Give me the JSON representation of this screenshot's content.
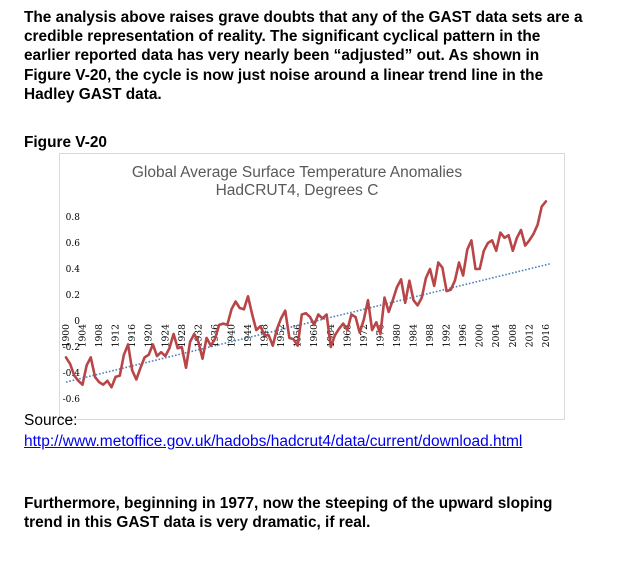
{
  "intro_text": "The analysis above raises grave doubts that any of the GAST data sets are a credible representation of reality. The significant cyclical pattern in the earlier reported data has very nearly been “adjusted” out. As shown in Figure V-20, the cycle is now just noise around a linear trend line in the Hadley GAST data.",
  "figure_label": "Figure V-20",
  "source_label": "Source:",
  "source_url": "http://www.metoffice.gov.uk/hadobs/hadcrut4/data/current/download.html",
  "outro_text": "Furthermore, beginning in 1977, now the steeping of the upward sloping trend in this GAST data is very dramatic, if real.",
  "colors": {
    "series": "#b84547",
    "trend": "#4f81bd",
    "title": "#595959",
    "link": "#0000ee"
  },
  "chart_data": {
    "type": "line",
    "title": "Global Average Surface Temperature Anomalies",
    "subtitle": "HadCRUT4, Degrees C",
    "xlabel": "",
    "ylabel": "",
    "xlim": [
      1900,
      2017
    ],
    "ylim": [
      -0.6,
      0.8
    ],
    "yticks": [
      -0.6,
      -0.4,
      -0.2,
      0,
      0.2,
      0.4,
      0.6,
      0.8
    ],
    "ytick_labels": [
      "-0.6",
      "-0.4",
      "-0.2",
      "0",
      "0.2",
      "0.4",
      "0.6",
      "0.8"
    ],
    "xticks": [
      1900,
      1904,
      1908,
      1912,
      1916,
      1920,
      1924,
      1928,
      1932,
      1936,
      1940,
      1944,
      1948,
      1952,
      1956,
      1960,
      1964,
      1968,
      1972,
      1976,
      1980,
      1984,
      1988,
      1992,
      1996,
      2000,
      2004,
      2008,
      2012,
      2016
    ],
    "xtick_labels": [
      "1900",
      "1904",
      "1908",
      "1912",
      "1916",
      "1920",
      "1924",
      "1928",
      "1932",
      "1936",
      "1940",
      "1944",
      "1948",
      "1952",
      "1956",
      "1960",
      "1964",
      "1968",
      "1972",
      "1976",
      "1980",
      "1984",
      "1988",
      "1992",
      "1996",
      "2000",
      "2004",
      "2008",
      "2012",
      "2016"
    ],
    "grid": false,
    "legend": "none",
    "trend": {
      "type": "linear",
      "style": "dotted",
      "from": [
        1900,
        -0.47
      ],
      "to": [
        2017,
        0.44
      ]
    },
    "series": [
      {
        "x": [
          1900,
          1901,
          1902,
          1903,
          1904,
          1905,
          1906,
          1907,
          1908,
          1909,
          1910,
          1911,
          1912,
          1913,
          1914,
          1915,
          1916,
          1917,
          1918,
          1919,
          1920,
          1921,
          1922,
          1923,
          1924,
          1925,
          1926,
          1927,
          1928,
          1929,
          1930,
          1931,
          1932,
          1933,
          1934,
          1935,
          1936,
          1937,
          1938,
          1939,
          1940,
          1941,
          1942,
          1943,
          1944,
          1945,
          1946,
          1947,
          1948,
          1949,
          1950,
          1951,
          1952,
          1953,
          1954,
          1955,
          1956,
          1957,
          1958,
          1959,
          1960,
          1961,
          1962,
          1963,
          1964,
          1965,
          1966,
          1967,
          1968,
          1969,
          1970,
          1971,
          1972,
          1973,
          1974,
          1975,
          1976,
          1977,
          1978,
          1979,
          1980,
          1981,
          1982,
          1983,
          1984,
          1985,
          1986,
          1987,
          1988,
          1989,
          1990,
          1991,
          1992,
          1993,
          1994,
          1995,
          1996,
          1997,
          1998,
          1999,
          2000,
          2001,
          2002,
          2003,
          2004,
          2005,
          2006,
          2007,
          2008,
          2009,
          2010,
          2011,
          2012,
          2013,
          2014,
          2015,
          2016
        ],
        "values": [
          -0.28,
          -0.33,
          -0.42,
          -0.46,
          -0.49,
          -0.34,
          -0.28,
          -0.43,
          -0.47,
          -0.49,
          -0.46,
          -0.51,
          -0.43,
          -0.42,
          -0.26,
          -0.18,
          -0.38,
          -0.45,
          -0.36,
          -0.28,
          -0.26,
          -0.18,
          -0.27,
          -0.24,
          -0.27,
          -0.21,
          -0.1,
          -0.21,
          -0.2,
          -0.36,
          -0.16,
          -0.1,
          -0.16,
          -0.29,
          -0.13,
          -0.19,
          -0.14,
          -0.03,
          -0.02,
          -0.03,
          0.09,
          0.15,
          0.1,
          0.09,
          0.19,
          0.05,
          -0.07,
          -0.04,
          -0.11,
          -0.11,
          -0.19,
          -0.06,
          0.02,
          0.08,
          -0.13,
          -0.14,
          -0.19,
          0.05,
          0.06,
          0.03,
          -0.03,
          0.05,
          0.02,
          0.05,
          -0.2,
          -0.11,
          -0.06,
          -0.02,
          -0.07,
          0.05,
          0.03,
          -0.09,
          0.01,
          0.16,
          -0.07,
          -0.01,
          -0.1,
          0.18,
          0.07,
          0.16,
          0.26,
          0.32,
          0.14,
          0.31,
          0.16,
          0.12,
          0.18,
          0.33,
          0.4,
          0.27,
          0.45,
          0.41,
          0.23,
          0.24,
          0.31,
          0.45,
          0.35,
          0.55,
          0.62,
          0.4,
          0.4,
          0.54,
          0.6,
          0.62,
          0.54,
          0.68,
          0.64,
          0.66,
          0.54,
          0.64,
          0.7,
          0.58,
          0.62,
          0.67,
          0.74,
          0.88,
          0.92
        ]
      }
    ]
  }
}
